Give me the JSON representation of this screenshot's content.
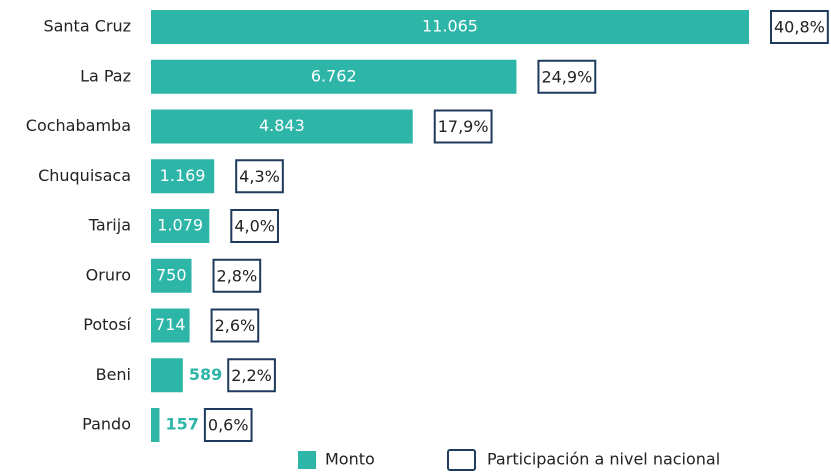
{
  "chart_data": {
    "type": "bar",
    "categories": [
      "Santa Cruz",
      "La Paz",
      "Cochabamba",
      "Chuquisaca",
      "Tarija",
      "Oruro",
      "Potosí",
      "Beni",
      "Pando"
    ],
    "series": [
      {
        "name": "Monto",
        "color": "#2db5a8",
        "values": [
          11065,
          6762,
          4843,
          1169,
          1079,
          750,
          714,
          589,
          157
        ],
        "value_labels": [
          "11.065",
          "6.762",
          "4.843",
          "1.169",
          "1.079",
          "750",
          "714",
          "589",
          "157"
        ]
      },
      {
        "name": "Participación a nivel nacional",
        "color": "#1e3a5c",
        "values": [
          40.8,
          24.9,
          17.9,
          4.3,
          4.0,
          2.8,
          2.6,
          2.2,
          0.6
        ],
        "value_labels": [
          "40,8%",
          "24,9%",
          "17,9%",
          "4,3%",
          "4,0%",
          "2,8%",
          "2,6%",
          "2,2%",
          "0,6%"
        ]
      }
    ]
  }
}
